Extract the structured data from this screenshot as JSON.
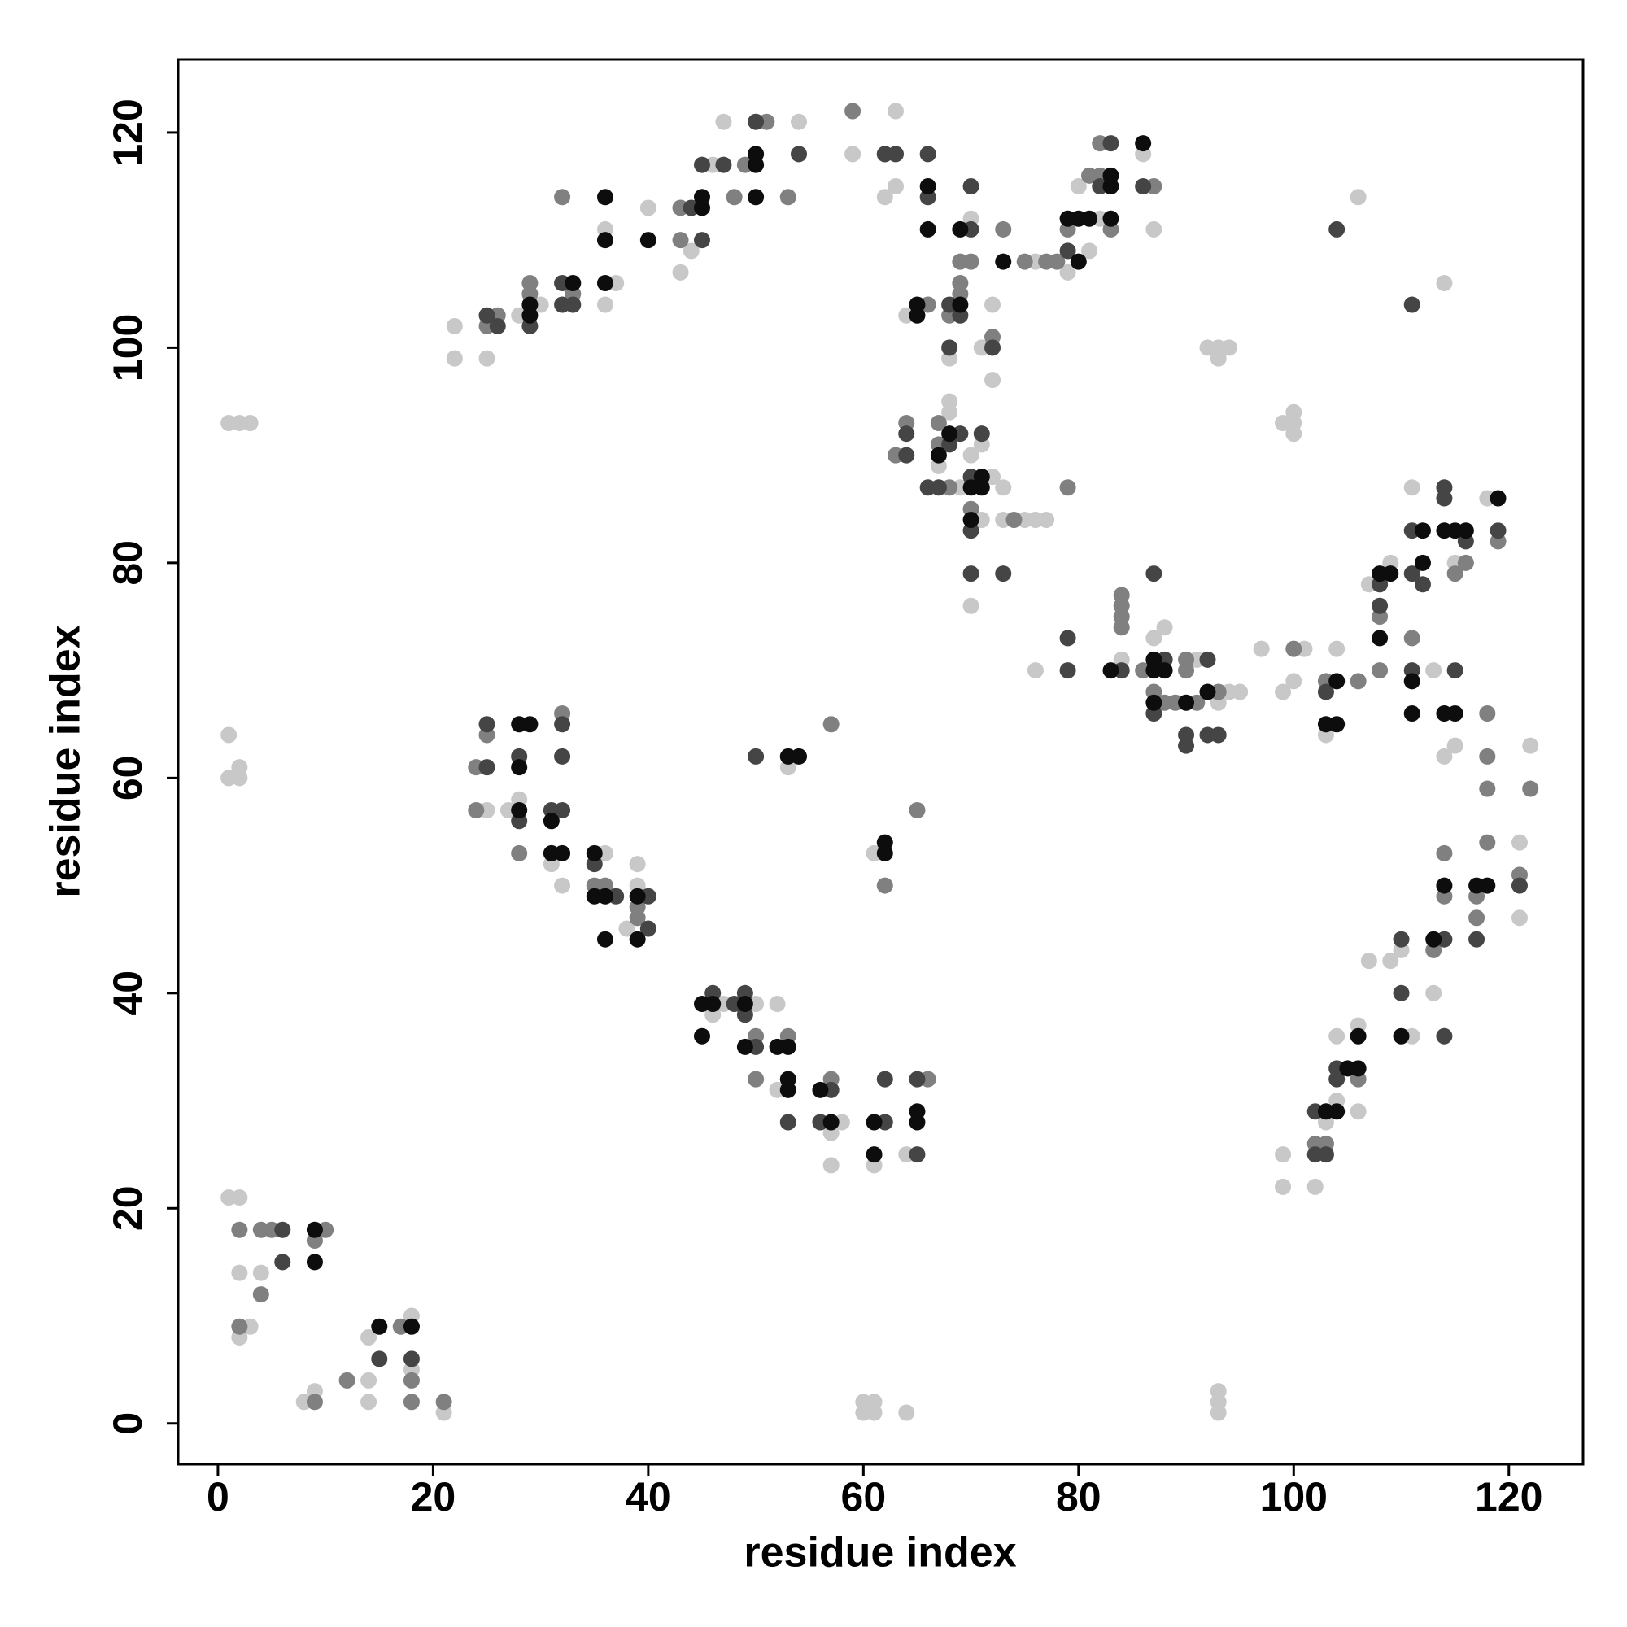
{
  "chart_data": {
    "type": "scatter",
    "x_label": "residue index",
    "y_label": "residue index",
    "xlim": [
      -3.7,
      126.9
    ],
    "ylim": [
      -3.8,
      126.8
    ],
    "xticks": [
      0,
      20,
      40,
      60,
      80,
      100,
      120
    ],
    "yticks": [
      0,
      20,
      40,
      60,
      80,
      100,
      120
    ],
    "series": [
      {
        "color": "#c8c8c8",
        "x": [
          1,
          2,
          2,
          4,
          3,
          2,
          8,
          9,
          14,
          14,
          14,
          21,
          18,
          1,
          2,
          3,
          1,
          1,
          2,
          2,
          18,
          25,
          27,
          28,
          31,
          32,
          36,
          38,
          39,
          39,
          46,
          47,
          50,
          52,
          52,
          57,
          57,
          58,
          53,
          61,
          61,
          64,
          60,
          61,
          60,
          61,
          64,
          93,
          93,
          93,
          22,
          22,
          25,
          28,
          30,
          36,
          36,
          37,
          40,
          43,
          44,
          46,
          47,
          54,
          59,
          62,
          63,
          63,
          64,
          68,
          70,
          71,
          72,
          72,
          68,
          68,
          67,
          69,
          71,
          71,
          72,
          73,
          73,
          75,
          76,
          77,
          70,
          70,
          76,
          76,
          79,
          80,
          81,
          82,
          86,
          87,
          84,
          87,
          88,
          91,
          94,
          95,
          97,
          99,
          100,
          101,
          103,
          104,
          107,
          109,
          111,
          113,
          114,
          115,
          115,
          118,
          122,
          99,
          100,
          100,
          100,
          92,
          93,
          94,
          93,
          114,
          106,
          93,
          99,
          99,
          102,
          103,
          104,
          104,
          106,
          107,
          109,
          110,
          111,
          113,
          121,
          121,
          106
        ],
        "values": [
          21,
          21,
          14,
          14,
          9,
          8,
          2,
          3,
          8,
          4,
          2,
          1,
          10,
          93,
          93,
          93,
          64,
          60,
          61,
          60,
          5,
          57,
          57,
          58,
          52,
          50,
          53,
          46,
          52,
          50,
          38,
          39,
          39,
          39,
          31,
          27,
          24,
          28,
          61,
          53,
          24,
          25,
          1,
          1,
          2,
          2,
          1,
          3,
          2,
          1,
          102,
          99,
          99,
          103,
          104,
          111,
          104,
          106,
          113,
          107,
          109,
          117,
          121,
          121,
          118,
          114,
          115,
          122,
          103,
          99,
          112,
          100,
          104,
          97,
          95,
          94,
          89,
          87,
          91,
          84,
          88,
          87,
          84,
          84,
          84,
          84,
          76,
          90,
          70,
          108,
          107,
          115,
          109,
          112,
          118,
          111,
          71,
          73,
          74,
          71,
          68,
          68,
          72,
          68,
          69,
          72,
          64,
          72,
          78,
          80,
          87,
          70,
          62,
          80,
          63,
          86,
          63,
          93,
          93,
          94,
          92,
          100,
          100,
          100,
          99,
          106,
          114,
          67,
          25,
          22,
          22,
          28,
          30,
          36,
          37,
          43,
          43,
          44,
          36,
          40,
          54,
          47,
          29
        ]
      },
      {
        "color": "#808080",
        "x": [
          2,
          4,
          5,
          4,
          9,
          10,
          12,
          17,
          18,
          18,
          21,
          9,
          2,
          24,
          25,
          24,
          28,
          32,
          35,
          36,
          39,
          39,
          50,
          50,
          53,
          57,
          66,
          65,
          62,
          57,
          25,
          26,
          29,
          29,
          32,
          33,
          43,
          43,
          48,
          49,
          51,
          53,
          59,
          62,
          66,
          68,
          69,
          69,
          69,
          70,
          72,
          73,
          63,
          64,
          67,
          67,
          68,
          74,
          79,
          70,
          75,
          77,
          78,
          79,
          81,
          82,
          82,
          83,
          87,
          84,
          84,
          84,
          84,
          86,
          87,
          88,
          89,
          90,
          90,
          91,
          93,
          100,
          103,
          106,
          108,
          108,
          111,
          115,
          116,
          118,
          118,
          118,
          119,
          122,
          118,
          102,
          103,
          106,
          113,
          114,
          114,
          117,
          117,
          121
        ],
        "values": [
          18,
          18,
          18,
          12,
          17,
          18,
          4,
          9,
          2,
          4,
          2,
          2,
          9,
          61,
          64,
          57,
          53,
          66,
          50,
          50,
          47,
          48,
          32,
          36,
          36,
          32,
          32,
          57,
          50,
          65,
          102,
          103,
          106,
          105,
          114,
          105,
          113,
          110,
          114,
          117,
          121,
          114,
          122,
          118,
          104,
          103,
          108,
          106,
          105,
          108,
          101,
          111,
          90,
          93,
          93,
          91,
          87,
          84,
          87,
          85,
          108,
          108,
          108,
          111,
          116,
          116,
          119,
          111,
          115,
          77,
          76,
          75,
          74,
          70,
          68,
          67,
          67,
          71,
          70,
          67,
          68,
          72,
          69,
          69,
          75,
          70,
          73,
          79,
          80,
          59,
          62,
          54,
          82,
          59,
          66,
          26,
          26,
          32,
          44,
          53,
          49,
          47,
          49,
          51
        ]
      },
      {
        "color": "#454545",
        "x": [
          6,
          6,
          15,
          18,
          25,
          25,
          28,
          28,
          31,
          32,
          32,
          32,
          35,
          37,
          40,
          40,
          46,
          48,
          49,
          49,
          50,
          53,
          56,
          57,
          62,
          62,
          65,
          65,
          50,
          25,
          26,
          29,
          32,
          33,
          32,
          45,
          44,
          45,
          47,
          50,
          54,
          62,
          63,
          66,
          66,
          68,
          69,
          68,
          72,
          70,
          70,
          64,
          64,
          66,
          67,
          68,
          69,
          71,
          70,
          70,
          70,
          73,
          79,
          82,
          83,
          86,
          79,
          79,
          84,
          87,
          87,
          88,
          90,
          90,
          92,
          92,
          93,
          103,
          108,
          108,
          111,
          111,
          112,
          111,
          104,
          114,
          114,
          116,
          119,
          115,
          111,
          102,
          102,
          103,
          104,
          104,
          110,
          110,
          114,
          114,
          117,
          121
        ],
        "values": [
          18,
          15,
          6,
          6,
          65,
          61,
          62,
          56,
          57,
          57,
          62,
          65,
          52,
          49,
          46,
          49,
          40,
          39,
          40,
          38,
          35,
          28,
          28,
          31,
          28,
          32,
          25,
          32,
          62,
          103,
          102,
          102,
          104,
          104,
          106,
          117,
          113,
          110,
          117,
          121,
          118,
          118,
          118,
          118,
          114,
          104,
          103,
          100,
          100,
          111,
          115,
          90,
          92,
          87,
          87,
          91,
          92,
          92,
          88,
          83,
          79,
          79,
          109,
          115,
          119,
          115,
          73,
          70,
          70,
          79,
          66,
          71,
          64,
          63,
          71,
          64,
          64,
          68,
          76,
          78,
          83,
          79,
          78,
          104,
          111,
          87,
          86,
          82,
          83,
          70,
          70,
          29,
          25,
          25,
          32,
          33,
          45,
          40,
          45,
          36,
          45,
          50
        ]
      },
      {
        "color": "#0d0d0d",
        "x": [
          9,
          9,
          15,
          18,
          28,
          29,
          28,
          28,
          31,
          31,
          32,
          35,
          35,
          36,
          36,
          39,
          39,
          45,
          46,
          45,
          49,
          49,
          52,
          53,
          53,
          53,
          56,
          57,
          61,
          61,
          62,
          62,
          65,
          65,
          53,
          54,
          29,
          29,
          33,
          36,
          36,
          36,
          40,
          45,
          45,
          50,
          50,
          50,
          65,
          65,
          66,
          66,
          69,
          69,
          73,
          67,
          68,
          70,
          70,
          71,
          71,
          79,
          80,
          81,
          83,
          83,
          83,
          86,
          80,
          83,
          87,
          87,
          87,
          88,
          90,
          92,
          103,
          104,
          104,
          108,
          108,
          109,
          111,
          111,
          112,
          112,
          114,
          115,
          116,
          114,
          115,
          119,
          103,
          104,
          105,
          106,
          106,
          110,
          113,
          114,
          117,
          118
        ],
        "values": [
          18,
          15,
          9,
          9,
          65,
          65,
          61,
          57,
          56,
          53,
          53,
          53,
          49,
          49,
          45,
          49,
          45,
          39,
          39,
          36,
          39,
          35,
          35,
          35,
          32,
          31,
          31,
          28,
          28,
          25,
          53,
          54,
          28,
          29,
          62,
          62,
          103,
          104,
          106,
          114,
          110,
          106,
          110,
          113,
          114,
          118,
          117,
          114,
          104,
          103,
          115,
          111,
          111,
          104,
          108,
          90,
          92,
          87,
          84,
          88,
          87,
          112,
          112,
          112,
          112,
          115,
          116,
          119,
          108,
          70,
          71,
          70,
          67,
          70,
          67,
          68,
          65,
          65,
          69,
          73,
          79,
          79,
          69,
          66,
          80,
          83,
          83,
          83,
          83,
          66,
          66,
          86,
          29,
          29,
          33,
          33,
          36,
          36,
          45,
          50,
          50,
          50
        ]
      }
    ]
  }
}
